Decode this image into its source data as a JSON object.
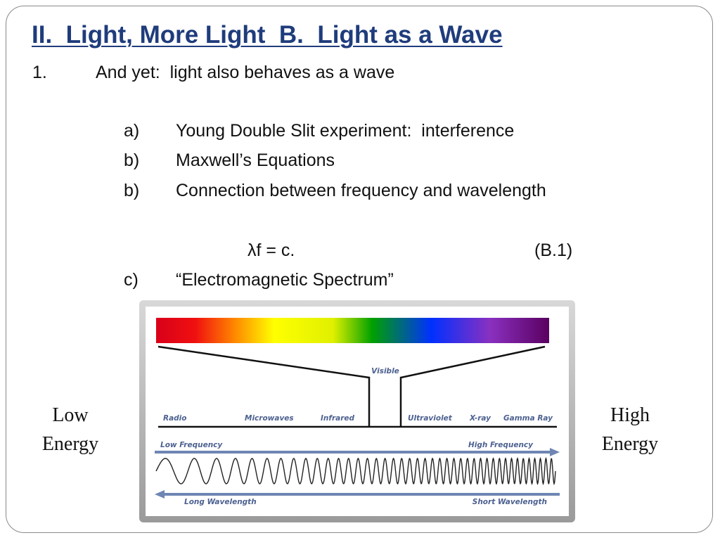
{
  "title": "II.  Light, More Light  B.  Light as a Wave",
  "point": {
    "number": "1.",
    "text": "And yet:  light also behaves as a wave"
  },
  "subitems": [
    {
      "marker": "a)",
      "text": "Young Double Slit experiment:  interference"
    },
    {
      "marker": "b)",
      "text": "Maxwell’s Equations"
    },
    {
      "marker": "b)",
      "text": "Connection between frequency and wavelength"
    }
  ],
  "equation": {
    "text": "λf = c.",
    "label": "(B.1)"
  },
  "last_item": {
    "marker": "c)",
    "text": "“Electromagnetic Spectrum”"
  },
  "figure": {
    "visible": "Visible",
    "bands": [
      "Radio",
      "Microwaves",
      "Infrared",
      "Ultraviolet",
      "X-ray",
      "Gamma Ray"
    ],
    "low_frequency": "Low Frequency",
    "high_frequency": "High Frequency",
    "long_wavelength": "Long Wavelength",
    "short_wavelength": "Short Wavelength"
  },
  "left_label": [
    "Low",
    "Energy"
  ],
  "right_label": [
    "High",
    "Energy"
  ]
}
